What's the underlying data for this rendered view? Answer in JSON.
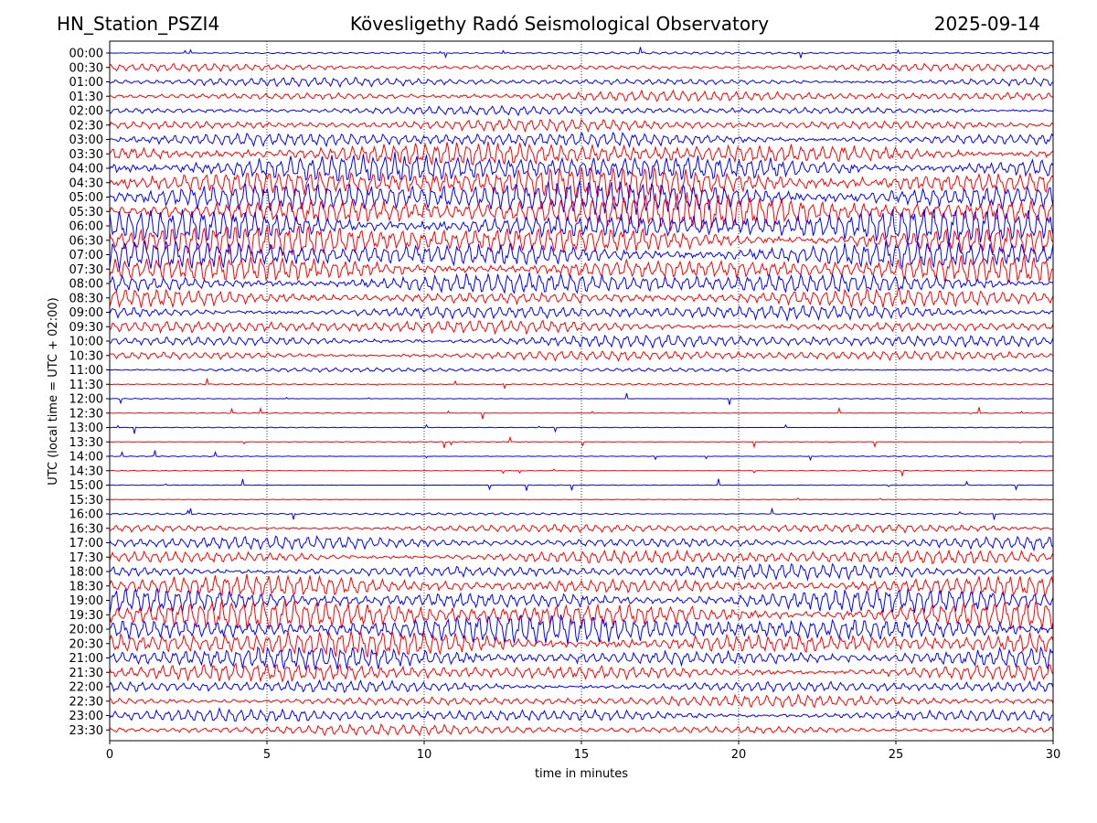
{
  "header": {
    "station": "HN_Station_PSZI4",
    "observatory": "Kövesligethy Radó Seismological Observatory",
    "date": "2025-09-14"
  },
  "chart_data": {
    "type": "line",
    "title": "Kövesligethy Radó Seismological Observatory",
    "xlabel": "time in minutes",
    "ylabel": "UTC (local time = UTC + 02:00)",
    "xlim": [
      0,
      30
    ],
    "x_ticks": [
      0,
      5,
      10,
      15,
      20,
      25,
      30
    ],
    "grid": "vertical dotted",
    "colors": {
      "odd_rows": "#0000ff",
      "even_rows": "#ff0000"
    },
    "rows": [
      {
        "label": "00:00",
        "color": "#0000ff",
        "amplitude": 0.15
      },
      {
        "label": "00:30",
        "color": "#ff0000",
        "amplitude": 0.5
      },
      {
        "label": "01:00",
        "color": "#0000ff",
        "amplitude": 0.6
      },
      {
        "label": "01:30",
        "color": "#ff0000",
        "amplitude": 0.7
      },
      {
        "label": "02:00",
        "color": "#0000ff",
        "amplitude": 0.6
      },
      {
        "label": "02:30",
        "color": "#ff0000",
        "amplitude": 0.8
      },
      {
        "label": "03:00",
        "color": "#0000ff",
        "amplitude": 1.0
      },
      {
        "label": "03:30",
        "color": "#ff0000",
        "amplitude": 1.6
      },
      {
        "label": "04:00",
        "color": "#0000ff",
        "amplitude": 2.0
      },
      {
        "label": "04:30",
        "color": "#ff0000",
        "amplitude": 2.2
      },
      {
        "label": "05:00",
        "color": "#0000ff",
        "amplitude": 2.4
      },
      {
        "label": "05:30",
        "color": "#ff0000",
        "amplitude": 2.4
      },
      {
        "label": "06:00",
        "color": "#0000ff",
        "amplitude": 2.3
      },
      {
        "label": "06:30",
        "color": "#ff0000",
        "amplitude": 2.2
      },
      {
        "label": "07:00",
        "color": "#0000ff",
        "amplitude": 2.0
      },
      {
        "label": "07:30",
        "color": "#ff0000",
        "amplitude": 1.8
      },
      {
        "label": "08:00",
        "color": "#0000ff",
        "amplitude": 1.5
      },
      {
        "label": "08:30",
        "color": "#ff0000",
        "amplitude": 1.2
      },
      {
        "label": "09:00",
        "color": "#0000ff",
        "amplitude": 1.0
      },
      {
        "label": "09:30",
        "color": "#ff0000",
        "amplitude": 0.9
      },
      {
        "label": "10:00",
        "color": "#0000ff",
        "amplitude": 0.9
      },
      {
        "label": "10:30",
        "color": "#ff0000",
        "amplitude": 0.7
      },
      {
        "label": "11:00",
        "color": "#0000ff",
        "amplitude": 0.3
      },
      {
        "label": "11:30",
        "color": "#ff0000",
        "amplitude": 0.12
      },
      {
        "label": "12:00",
        "color": "#0000ff",
        "amplitude": 0.05
      },
      {
        "label": "12:30",
        "color": "#ff0000",
        "amplitude": 0.05
      },
      {
        "label": "13:00",
        "color": "#0000ff",
        "amplitude": 0.05
      },
      {
        "label": "13:30",
        "color": "#ff0000",
        "amplitude": 0.05
      },
      {
        "label": "14:00",
        "color": "#0000ff",
        "amplitude": 0.06
      },
      {
        "label": "14:30",
        "color": "#ff0000",
        "amplitude": 0.05
      },
      {
        "label": "15:00",
        "color": "#0000ff",
        "amplitude": 0.05
      },
      {
        "label": "15:30",
        "color": "#ff0000",
        "amplitude": 0.04
      },
      {
        "label": "16:00",
        "color": "#0000ff",
        "amplitude": 0.15
      },
      {
        "label": "16:30",
        "color": "#ff0000",
        "amplitude": 0.6
      },
      {
        "label": "17:00",
        "color": "#0000ff",
        "amplitude": 0.9
      },
      {
        "label": "17:30",
        "color": "#ff0000",
        "amplitude": 1.0
      },
      {
        "label": "18:00",
        "color": "#0000ff",
        "amplitude": 1.0
      },
      {
        "label": "18:30",
        "color": "#ff0000",
        "amplitude": 1.4
      },
      {
        "label": "19:00",
        "color": "#0000ff",
        "amplitude": 1.6
      },
      {
        "label": "19:30",
        "color": "#ff0000",
        "amplitude": 2.0
      },
      {
        "label": "20:00",
        "color": "#0000ff",
        "amplitude": 2.0
      },
      {
        "label": "20:30",
        "color": "#ff0000",
        "amplitude": 1.8
      },
      {
        "label": "21:00",
        "color": "#0000ff",
        "amplitude": 1.5
      },
      {
        "label": "21:30",
        "color": "#ff0000",
        "amplitude": 1.2
      },
      {
        "label": "22:00",
        "color": "#0000ff",
        "amplitude": 0.9
      },
      {
        "label": "22:30",
        "color": "#ff0000",
        "amplitude": 0.8
      },
      {
        "label": "23:00",
        "color": "#0000ff",
        "amplitude": 0.9
      },
      {
        "label": "23:30",
        "color": "#ff0000",
        "amplitude": 0.7
      }
    ]
  }
}
